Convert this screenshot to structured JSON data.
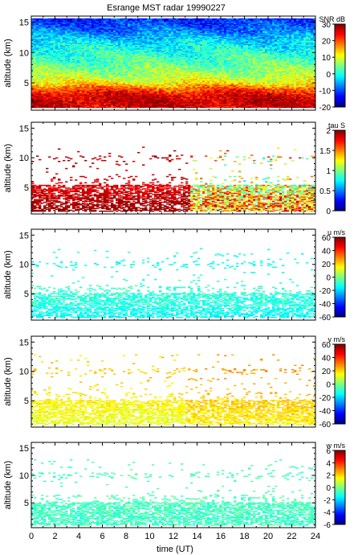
{
  "title": "Esrange MST radar 19990227",
  "xlabel": "time (UT)",
  "x_ticks": [
    "0",
    "2",
    "4",
    "6",
    "8",
    "10",
    "12",
    "14",
    "16",
    "18",
    "20",
    "22",
    "24"
  ],
  "colormap": [
    "#00007f",
    "#0000ff",
    "#007fff",
    "#00ffff",
    "#7fff7f",
    "#ffff00",
    "#ff7f00",
    "#ff0000",
    "#7f0000"
  ],
  "chart_data": [
    {
      "type": "heatmap",
      "quantity": "SNR",
      "colorbar_label": "SNR dB",
      "colorbar_range": [
        -20,
        30
      ],
      "colorbar_ticks": [
        "30",
        "20",
        "10",
        "0",
        "-10",
        "-20"
      ],
      "ylabel": "altitude (km)",
      "y_ticks": [
        "5",
        "10",
        "15"
      ],
      "ylim": [
        0.5,
        16
      ],
      "xlim": [
        0,
        24
      ],
      "profile_altitude_km": [
        1,
        2,
        3,
        4,
        5,
        6,
        8,
        10,
        12,
        14,
        16
      ],
      "profile_value": [
        26,
        27,
        25,
        20,
        12,
        8,
        4,
        1,
        -3,
        -9,
        -13
      ],
      "coverage": "full"
    },
    {
      "type": "heatmap",
      "quantity": "tau",
      "colorbar_label": "tau S",
      "colorbar_range": [
        0,
        2
      ],
      "colorbar_ticks": [
        "2",
        "1.5",
        "1",
        "0.5",
        "0"
      ],
      "ylabel": "altitude (km)",
      "y_ticks": [
        "5",
        "10",
        "15"
      ],
      "ylim": [
        0.5,
        16
      ],
      "xlim": [
        0,
        24
      ],
      "profile_altitude_km": [
        1,
        3,
        5,
        6.5,
        10,
        12
      ],
      "profile_value": [
        1.95,
        1.9,
        1.8,
        1.85,
        1.9,
        1.9
      ],
      "late_profile_altitude_km": [
        1,
        3,
        5,
        7,
        10,
        12
      ],
      "late_profile_value": [
        1.5,
        1.4,
        1.2,
        1.1,
        1.3,
        1.5
      ],
      "coverage": "sparse above 6 km"
    },
    {
      "type": "heatmap",
      "quantity": "u",
      "colorbar_label": "u m/s",
      "colorbar_range": [
        -60,
        60
      ],
      "colorbar_ticks": [
        "60",
        "40",
        "20",
        "0",
        "-20",
        "-40",
        "-60"
      ],
      "ylabel": "altitude (km)",
      "y_ticks": [
        "5",
        "10",
        "15"
      ],
      "ylim": [
        0.5,
        16
      ],
      "xlim": [
        0,
        24
      ],
      "profile_altitude_km": [
        1,
        3,
        5,
        7,
        10,
        12
      ],
      "profile_value": [
        -15,
        -12,
        -10,
        -8,
        -14,
        -12
      ],
      "coverage": "dense below 5 km, sparse above"
    },
    {
      "type": "heatmap",
      "quantity": "v",
      "colorbar_label": "v m/s",
      "colorbar_range": [
        -60,
        60
      ],
      "colorbar_ticks": [
        "60",
        "40",
        "20",
        "0",
        "-20",
        "-40",
        "-60"
      ],
      "ylabel": "altitude (km)",
      "y_ticks": [
        "5",
        "10",
        "15"
      ],
      "ylim": [
        0.5,
        16
      ],
      "xlim": [
        0,
        24
      ],
      "profile_altitude_km": [
        1,
        3,
        5,
        7,
        10,
        12
      ],
      "profile_value": [
        12,
        14,
        16,
        18,
        22,
        20
      ],
      "coverage": "dense below 5 km, sparse above"
    },
    {
      "type": "heatmap",
      "quantity": "w",
      "colorbar_label": "w m/s",
      "colorbar_range": [
        -6,
        6
      ],
      "colorbar_ticks": [
        "6",
        "4",
        "2",
        "0",
        "-2",
        "-4",
        "-6"
      ],
      "ylabel": "altitude (km)",
      "y_ticks": [
        "5",
        "10",
        "15"
      ],
      "ylim": [
        0.5,
        16
      ],
      "xlim": [
        0,
        24
      ],
      "profile_altitude_km": [
        1,
        3,
        5,
        7,
        10,
        12
      ],
      "profile_value": [
        -0.8,
        -0.8,
        -0.7,
        -0.6,
        -0.7,
        -0.7
      ],
      "coverage": "dense below 5 km, sparse above"
    }
  ]
}
